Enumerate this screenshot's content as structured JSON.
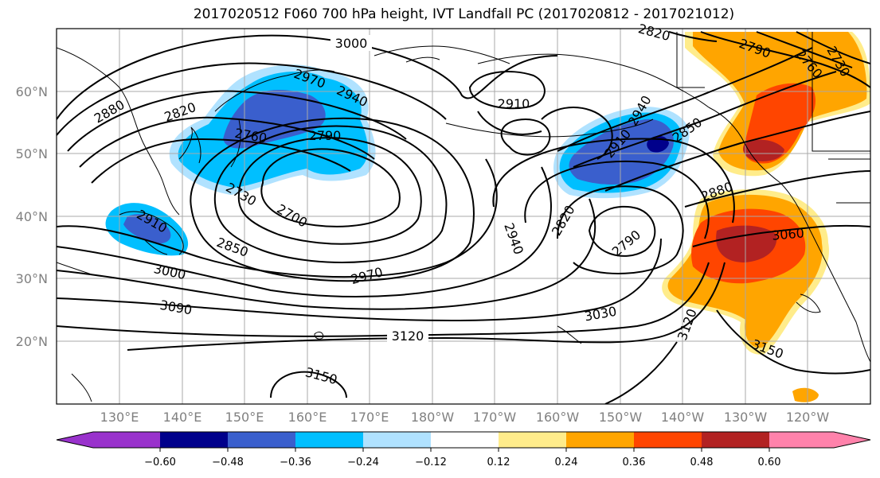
{
  "title": "2017020512 F060 700 hPa height, IVT Landfall PC (2017020812 - 2017021012)",
  "lat_labels": [
    "60°N",
    "50°N",
    "40°N",
    "30°N",
    "20°N"
  ],
  "lon_labels": [
    "130°E",
    "140°E",
    "150°E",
    "160°E",
    "170°E",
    "180°W",
    "170°W",
    "160°W",
    "150°W",
    "140°W",
    "130°W",
    "120°W"
  ],
  "contour_labels": [
    "3000",
    "2970",
    "2940",
    "2820",
    "2880",
    "2760",
    "2790",
    "2730",
    "2700",
    "2910",
    "2850",
    "3000",
    "2970",
    "3090",
    "3120",
    "3150",
    "2910",
    "2850",
    "2940",
    "2910",
    "2940",
    "2820",
    "2790",
    "3030",
    "3120",
    "2880",
    "3060",
    "3150",
    "2790",
    "2760",
    "2820",
    "2730"
  ],
  "colorbar": {
    "tick_labels": [
      "−0.60",
      "−0.48",
      "−0.36",
      "−0.24",
      "−0.12",
      "0.12",
      "0.24",
      "0.36",
      "0.48",
      "0.60"
    ],
    "colors": [
      "#9932cc",
      "#00008b",
      "#3a5fcd",
      "#00bfff",
      "#b0e2ff",
      "#ffffff",
      "#ffec8b",
      "#ffa500",
      "#ff4500",
      "#b22222",
      "#ff82ab"
    ]
  },
  "colors": {
    "negative_strong": "#3a5fcd",
    "negative_mid": "#00bfff",
    "negative_weak": "#b0e2ff",
    "positive_weak": "#ffec8b",
    "positive_mid": "#ffa500",
    "positive_strong": "#ff4500",
    "positive_max": "#b22222",
    "darkest_negative": "#00008b"
  }
}
